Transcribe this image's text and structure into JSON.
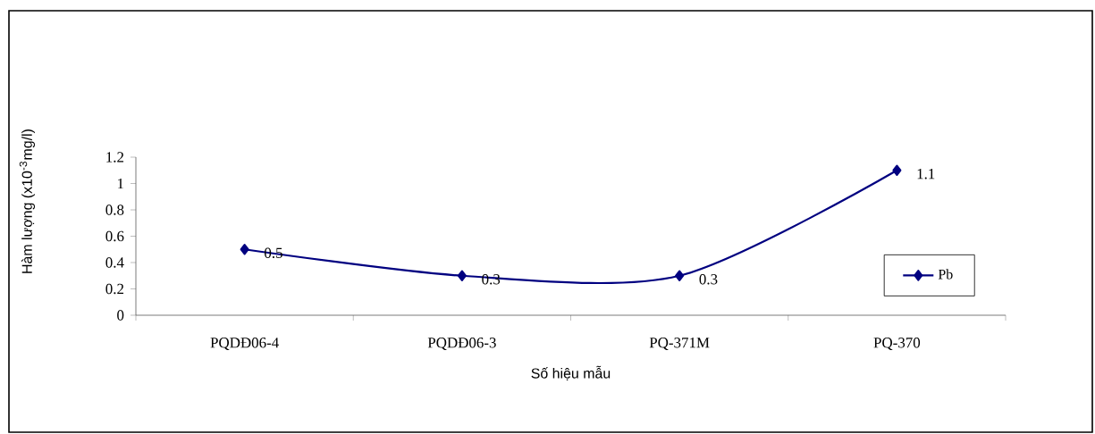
{
  "chart_data": {
    "type": "line",
    "xlabel": "Số hiệu mẫu",
    "ylabel": "Hàm lượng (x10$^{-3}$mg/l)",
    "categories": [
      "PQDĐ06-4",
      "PQDĐ06-3",
      "PQ-371M",
      "PQ-370"
    ],
    "series": [
      {
        "name": "Pb",
        "color": "#000080",
        "values": [
          0.5,
          0.3,
          0.3,
          1.1
        ]
      }
    ],
    "ylim": [
      0,
      1.2
    ],
    "yticks": [
      0,
      0.2,
      0.4,
      0.6,
      0.8,
      1,
      1.2
    ],
    "marker": "diamond",
    "line_style": "solid",
    "data_labels": true,
    "legend": "right",
    "grid": false
  }
}
